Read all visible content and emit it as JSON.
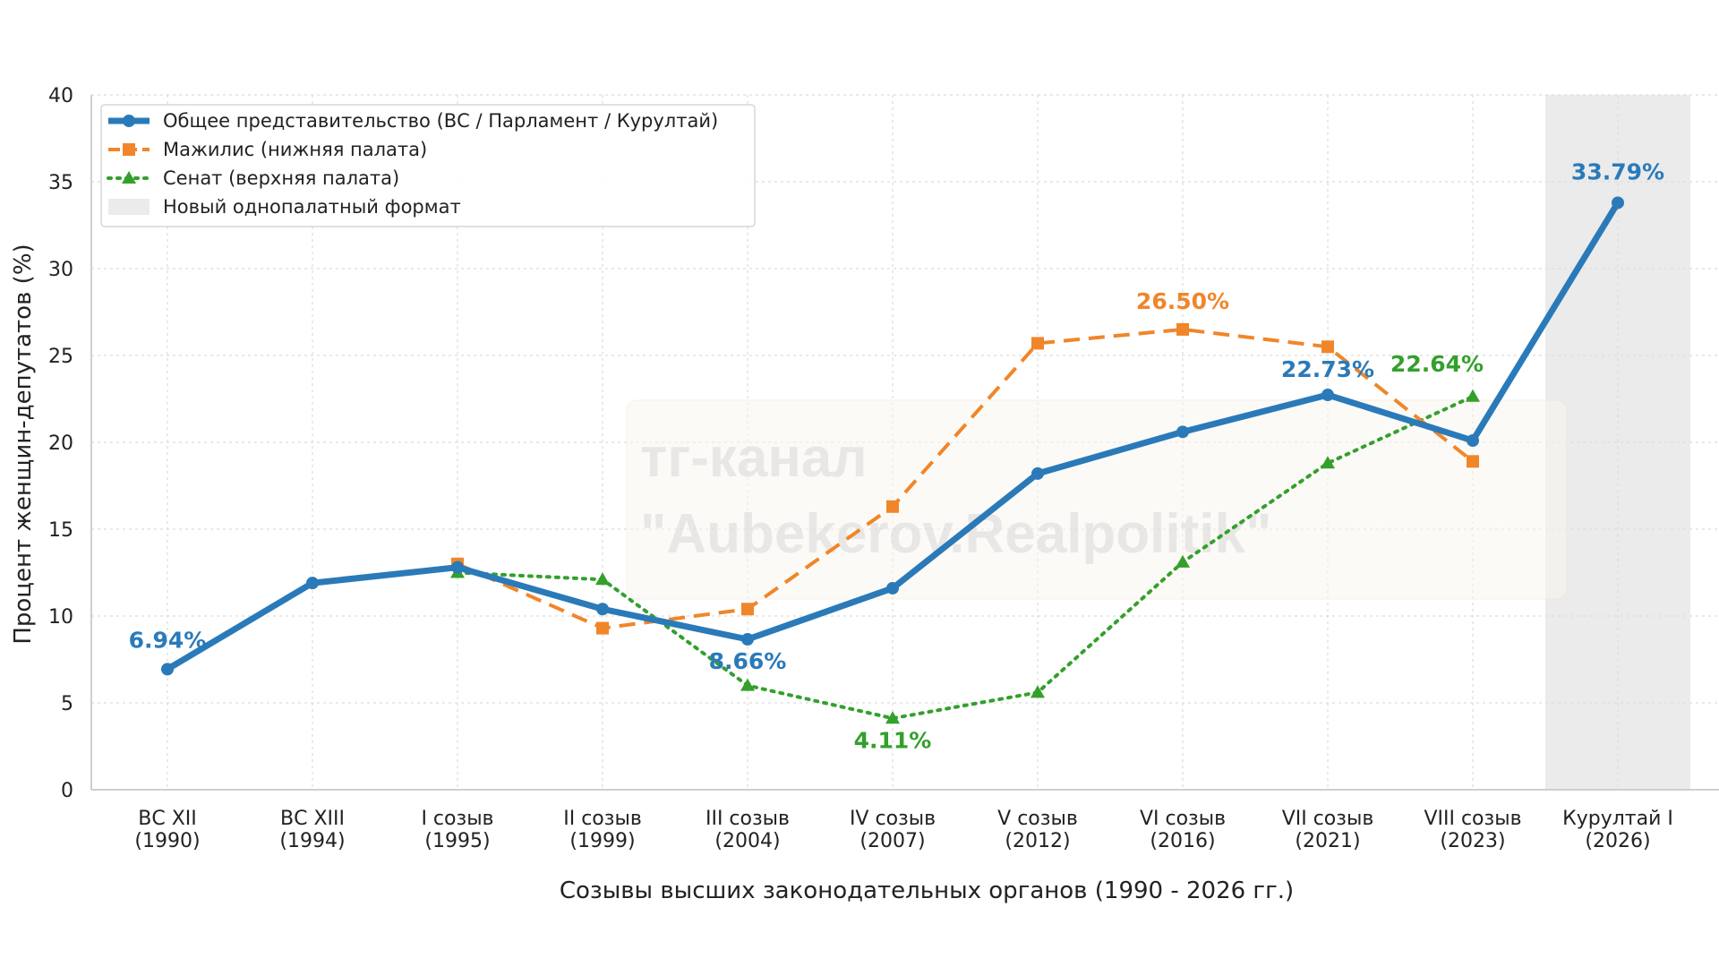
{
  "chart_data": {
    "type": "line",
    "title": "",
    "xlabel": "Созывы высших законодательных органов (1990 - 2026 гг.)",
    "ylabel": "Процент женщин-депутатов (%)",
    "ylim": [
      0,
      40
    ],
    "yticks": [
      0,
      5,
      10,
      15,
      20,
      25,
      30,
      35,
      40
    ],
    "grid": true,
    "legend_position": "top-left",
    "categories": [
      [
        "ВС XII",
        "(1990)"
      ],
      [
        "ВС XIII",
        "(1994)"
      ],
      [
        "I созыв",
        "(1995)"
      ],
      [
        "II созыв",
        "(1999)"
      ],
      [
        "III созыв",
        "(2004)"
      ],
      [
        "IV созыв",
        "(2007)"
      ],
      [
        "V созыв",
        "(2012)"
      ],
      [
        "VI созыв",
        "(2016)"
      ],
      [
        "VII созыв",
        "(2021)"
      ],
      [
        "VIII созыв",
        "(2023)"
      ],
      [
        "Курултай I",
        "(2026)"
      ]
    ],
    "series": [
      {
        "name": "Общее представительство (ВС / Парламент / Курултай)",
        "color": "#2a7ab9",
        "style": "solid",
        "marker": "circle",
        "values": [
          6.94,
          11.9,
          12.8,
          10.4,
          8.66,
          11.6,
          18.2,
          20.6,
          22.73,
          20.1,
          33.79
        ]
      },
      {
        "name": "Мажилис (нижняя палата)",
        "color": "#f0862a",
        "style": "dashed",
        "marker": "square",
        "values": [
          null,
          null,
          13.0,
          9.3,
          10.4,
          16.3,
          25.7,
          26.5,
          25.5,
          18.9,
          null
        ]
      },
      {
        "name": "Сенат (верхняя палата)",
        "color": "#33a02c",
        "style": "dotted",
        "marker": "triangle",
        "values": [
          null,
          null,
          12.5,
          12.1,
          6.0,
          4.11,
          5.6,
          13.1,
          18.8,
          22.64,
          null
        ]
      }
    ],
    "shaded_region": {
      "label": "Новый однопалатный формат",
      "category_index": 10,
      "color": "#ebebeb"
    },
    "annotations": [
      {
        "text": "6.94%",
        "series": 0,
        "index": 0,
        "color": "#2a7ab9"
      },
      {
        "text": "8.66%",
        "series": 0,
        "index": 4,
        "color": "#2a7ab9"
      },
      {
        "text": "22.73%",
        "series": 0,
        "index": 8,
        "color": "#2a7ab9"
      },
      {
        "text": "33.79%",
        "series": 0,
        "index": 10,
        "color": "#2a7ab9"
      },
      {
        "text": "26.50%",
        "series": 1,
        "index": 7,
        "color": "#f0862a"
      },
      {
        "text": "4.11%",
        "series": 2,
        "index": 5,
        "color": "#33a02c"
      },
      {
        "text": "22.64%",
        "series": 2,
        "index": 9,
        "color": "#33a02c"
      }
    ],
    "watermark": [
      "тг-канал",
      "\"Aubekerov.Realpolitik\""
    ]
  }
}
